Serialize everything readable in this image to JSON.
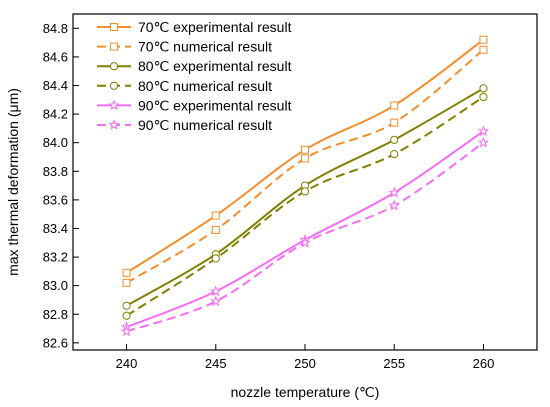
{
  "chart_data": {
    "type": "line",
    "xlabel": "nozzle temperature (℃)",
    "ylabel": "max thermal deformation (μm)",
    "xlim": [
      237,
      263
    ],
    "ylim": [
      82.55,
      84.9
    ],
    "x_ticks": [
      "240",
      "245",
      "250",
      "255",
      "260"
    ],
    "y_ticks": [
      "82.6",
      "82.8",
      "83.0",
      "83.2",
      "83.4",
      "83.6",
      "83.8",
      "84.0",
      "84.2",
      "84.4",
      "84.6",
      "84.8"
    ],
    "legend_placement": "top-left",
    "grid": false,
    "x": [
      240,
      245,
      250,
      255,
      260
    ],
    "series": [
      {
        "name": "70℃ experimental result",
        "values": [
          83.09,
          83.49,
          83.95,
          84.26,
          84.72
        ],
        "color": "#f28e2b",
        "dash": "solid",
        "marker": "square"
      },
      {
        "name": "70℃ numerical result",
        "values": [
          83.02,
          83.39,
          83.89,
          84.14,
          84.65
        ],
        "color": "#f28e2b",
        "dash": "dashed",
        "marker": "square"
      },
      {
        "name": "80℃ experimental result",
        "values": [
          82.86,
          83.22,
          83.7,
          84.02,
          84.38
        ],
        "color": "#808000",
        "dash": "solid",
        "marker": "circle"
      },
      {
        "name": "80℃ numerical result",
        "values": [
          82.79,
          83.19,
          83.66,
          83.92,
          84.32
        ],
        "color": "#808000",
        "dash": "dashed",
        "marker": "circle"
      },
      {
        "name": "90℃ experimental result",
        "values": [
          82.71,
          82.96,
          83.32,
          83.65,
          84.08
        ],
        "color": "#f46ef4",
        "dash": "solid",
        "marker": "star"
      },
      {
        "name": "90℃ numerical result",
        "values": [
          82.68,
          82.89,
          83.3,
          83.56,
          84.0
        ],
        "color": "#f46ef4",
        "dash": "dashed",
        "marker": "star"
      }
    ]
  }
}
